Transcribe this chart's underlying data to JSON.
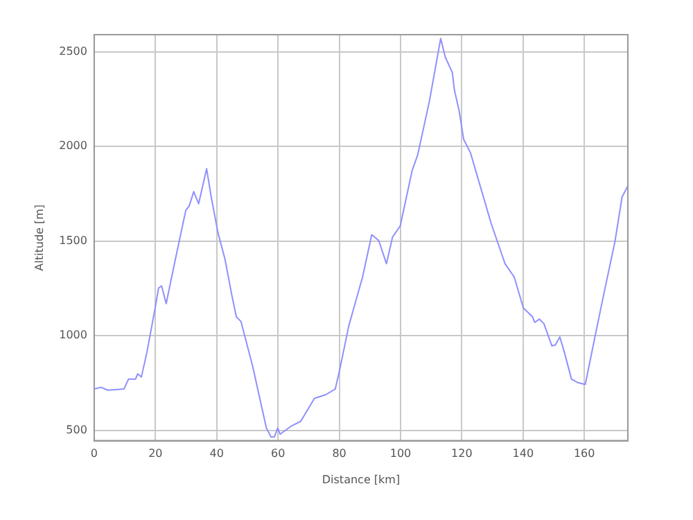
{
  "chart_data": {
    "type": "line",
    "xlabel": "Distance [km]",
    "ylabel": "Altitude [m]",
    "xlim": [
      0,
      174.2
    ],
    "ylim": [
      445,
      2590
    ],
    "xticks": [
      0,
      20,
      40,
      60,
      80,
      100,
      120,
      140,
      160
    ],
    "yticks": [
      500,
      1000,
      1500,
      2000,
      2500
    ],
    "grid": true,
    "legend": false,
    "marker": "none",
    "line_style": "solid",
    "series": [
      {
        "color": "#8f8fff",
        "x": [
          0,
          2.2,
          4.5,
          9.7,
          11.2,
          13.5,
          14.2,
          15.4,
          17.2,
          19.9,
          21,
          22,
          23.5,
          25,
          26.5,
          29.9,
          31,
          32.5,
          34.1,
          36.7,
          38.2,
          40.4,
          42.7,
          44.9,
          46.4,
          47.9,
          51.7,
          56.2,
          57.7,
          58.8,
          59.9,
          60.7,
          64.4,
          67.4,
          71.9,
          75.6,
          78.7,
          80.1,
          83.1,
          87.6,
          90.6,
          92.9,
          95.4,
          97.4,
          99.9,
          103.8,
          105.6,
          109.4,
          113.1,
          114.6,
          116.9,
          117.6,
          119.1,
          120.6,
          122.8,
          129.6,
          132.6,
          134.1,
          137.1,
          140.1,
          143.1,
          143.8,
          145.3,
          146.8,
          149.4,
          150.5,
          152,
          153.5,
          155.8,
          158,
          160.3,
          163.3,
          166.3,
          170,
          172.3,
          174.2
        ],
        "values": [
          718,
          727,
          712,
          718,
          770,
          770,
          798,
          781,
          911,
          1146,
          1251,
          1263,
          1169,
          1287,
          1403,
          1662,
          1685,
          1761,
          1697,
          1882,
          1732,
          1544,
          1403,
          1216,
          1099,
          1075,
          840,
          512,
          465,
          465,
          512,
          479,
          523,
          547,
          669,
          688,
          718,
          817,
          1051,
          1310,
          1533,
          1502,
          1380,
          1521,
          1580,
          1873,
          1955,
          2237,
          2570,
          2472,
          2390,
          2296,
          2190,
          2037,
          1967,
          1592,
          1451,
          1380,
          1310,
          1146,
          1099,
          1070,
          1087,
          1063,
          946,
          950,
          993,
          911,
          770,
          751,
          742,
          981,
          1216,
          1498,
          1732,
          1791
        ]
      }
    ]
  }
}
